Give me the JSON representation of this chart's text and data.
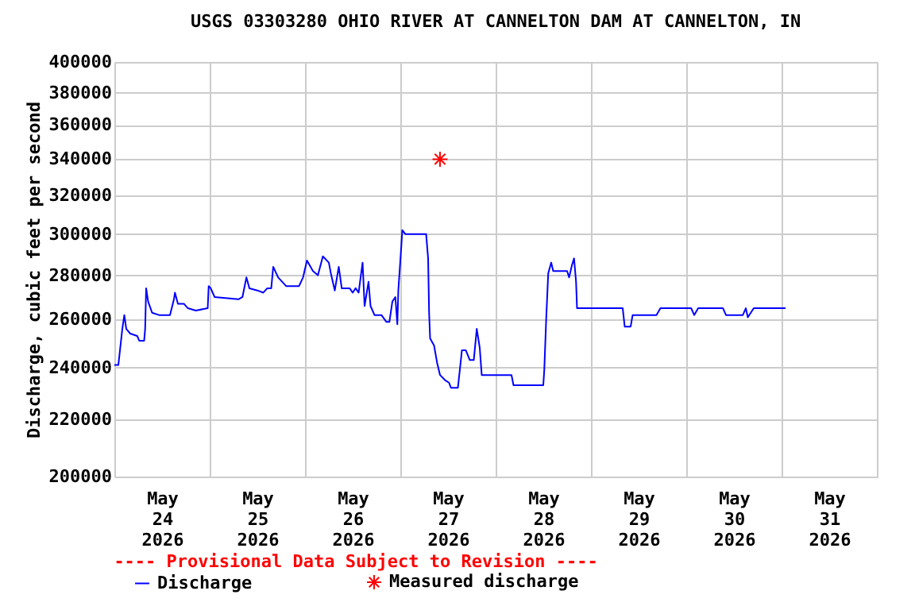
{
  "chart_data": {
    "type": "line",
    "title": "USGS 03303280 OHIO RIVER AT CANNELTON DAM AT CANNELTON, IN",
    "ylabel": "Discharge, cubic feet per second",
    "annotations": [
      "---- Provisional Data Subject to Revision ----"
    ],
    "log": true,
    "grid": true,
    "legend": "bottom",
    "line_style": "solid",
    "xlim": [
      "2026-05-24T00:00",
      "2026-06-01T00:00"
    ],
    "xticks": [
      {
        "value": "2026-05-24T00:00",
        "label": null
      },
      {
        "value": "2026-05-24T12:00",
        "label": "May\n24\n2026"
      },
      {
        "value": "2026-05-25T00:00",
        "label": null
      },
      {
        "value": "2026-05-25T12:00",
        "label": "May\n25\n2026"
      },
      {
        "value": "2026-05-26T00:00",
        "label": null
      },
      {
        "value": "2026-05-26T12:00",
        "label": "May\n26\n2026"
      },
      {
        "value": "2026-05-27T00:00",
        "label": null
      },
      {
        "value": "2026-05-27T12:00",
        "label": "May\n27\n2026"
      },
      {
        "value": "2026-05-28T00:00",
        "label": null
      },
      {
        "value": "2026-05-28T12:00",
        "label": "May\n28\n2026"
      },
      {
        "value": "2026-05-29T00:00",
        "label": null
      },
      {
        "value": "2026-05-29T12:00",
        "label": "May\n29\n2026"
      },
      {
        "value": "2026-05-30T00:00",
        "label": null
      },
      {
        "value": "2026-05-30T12:00",
        "label": "May\n30\n2026"
      },
      {
        "value": "2026-05-31T00:00",
        "label": null
      },
      {
        "value": "2026-05-31T12:00",
        "label": "May\n31\n2026"
      },
      {
        "value": "2026-06-01T00:00",
        "label": null
      }
    ],
    "ylim": [
      200000,
      400000
    ],
    "yticks": [
      200000,
      220000,
      240000,
      260000,
      280000,
      300000,
      320000,
      340000,
      360000,
      380000,
      400000
    ],
    "series": [
      {
        "name": "Discharge",
        "color": "#0000ff",
        "marker": "none",
        "x": [
          "2026-05-24T00:00",
          "2026-05-24T01:00",
          "2026-05-24T02:00",
          "2026-05-24T02:30",
          "2026-05-24T03:00",
          "2026-05-24T04:00",
          "2026-05-24T05:45",
          "2026-05-24T06:15",
          "2026-05-24T07:30",
          "2026-05-24T07:45",
          "2026-05-24T08:00",
          "2026-05-24T08:30",
          "2026-05-24T09:30",
          "2026-05-24T11:15",
          "2026-05-24T14:00",
          "2026-05-24T15:00",
          "2026-05-24T15:15",
          "2026-05-24T16:00",
          "2026-05-24T17:30",
          "2026-05-24T18:30",
          "2026-05-24T20:30",
          "2026-05-24T23:30",
          "2026-05-24T23:45",
          "2026-05-25T00:15",
          "2026-05-25T01:15",
          "2026-05-25T07:15",
          "2026-05-25T08:15",
          "2026-05-25T09:15",
          "2026-05-25T10:00",
          "2026-05-25T12:00",
          "2026-05-25T13:30",
          "2026-05-25T14:30",
          "2026-05-25T15:30",
          "2026-05-25T16:00",
          "2026-05-25T17:15",
          "2026-05-25T19:15",
          "2026-05-25T22:30",
          "2026-05-25T23:30",
          "2026-05-26T00:30",
          "2026-05-26T02:00",
          "2026-05-26T03:15",
          "2026-05-26T04:30",
          "2026-05-26T06:00",
          "2026-05-26T06:30",
          "2026-05-26T07:30",
          "2026-05-26T08:30",
          "2026-05-26T09:15",
          "2026-05-26T11:15",
          "2026-05-26T12:00",
          "2026-05-26T12:45",
          "2026-05-26T13:30",
          "2026-05-26T14:00",
          "2026-05-26T14:30",
          "2026-05-26T15:00",
          "2026-05-26T16:00",
          "2026-05-26T16:30",
          "2026-05-26T17:30",
          "2026-05-26T19:15",
          "2026-05-26T20:30",
          "2026-05-26T21:15",
          "2026-05-26T22:00",
          "2026-05-26T22:45",
          "2026-05-26T23:15",
          "2026-05-26T23:30",
          "2026-05-27T00:15",
          "2026-05-27T00:30",
          "2026-05-27T01:15",
          "2026-05-27T06:30",
          "2026-05-27T07:00",
          "2026-05-27T07:15",
          "2026-05-27T07:30",
          "2026-05-27T08:30",
          "2026-05-27T09:15",
          "2026-05-27T10:00",
          "2026-05-27T11:15",
          "2026-05-27T12:15",
          "2026-05-27T12:45",
          "2026-05-27T14:30",
          "2026-05-27T15:15",
          "2026-05-27T15:30",
          "2026-05-27T16:30",
          "2026-05-27T17:30",
          "2026-05-27T18:30",
          "2026-05-27T19:15",
          "2026-05-27T20:00",
          "2026-05-27T20:30",
          "2026-05-28T04:00",
          "2026-05-28T04:30",
          "2026-05-28T12:00",
          "2026-05-28T12:15",
          "2026-05-28T12:45",
          "2026-05-28T13:15",
          "2026-05-28T14:00",
          "2026-05-28T14:30",
          "2026-05-28T17:15",
          "2026-05-28T18:00",
          "2026-05-28T18:30",
          "2026-05-28T19:15",
          "2026-05-28T19:45",
          "2026-05-28T20:15",
          "2026-05-28T20:30",
          "2026-05-29T08:00",
          "2026-05-29T08:30",
          "2026-05-29T10:00",
          "2026-05-29T10:30",
          "2026-05-29T16:30",
          "2026-05-29T17:30",
          "2026-05-30T01:15",
          "2026-05-30T02:00",
          "2026-05-30T03:00",
          "2026-05-30T09:15",
          "2026-05-30T10:00",
          "2026-05-30T14:15",
          "2026-05-30T15:00",
          "2026-05-30T15:30",
          "2026-05-30T17:00",
          "2026-05-31T01:00"
        ],
        "values": [
          241000,
          241000,
          256000,
          262000,
          256000,
          254000,
          253000,
          251000,
          251000,
          256000,
          274000,
          268000,
          263000,
          262000,
          262000,
          269000,
          272000,
          267000,
          267000,
          265000,
          264000,
          265000,
          275000,
          274000,
          270000,
          269000,
          270000,
          279000,
          274000,
          273000,
          272000,
          274000,
          274000,
          284000,
          279000,
          275000,
          275000,
          279000,
          287000,
          282000,
          280000,
          289000,
          286000,
          281000,
          273000,
          284000,
          274000,
          274000,
          272000,
          274000,
          272000,
          279000,
          286000,
          266000,
          277000,
          266000,
          262000,
          262000,
          259000,
          259000,
          268000,
          270000,
          258000,
          273000,
          294000,
          302000,
          300000,
          300000,
          288000,
          263000,
          252000,
          249000,
          242000,
          237000,
          235000,
          234000,
          232000,
          232000,
          243000,
          247000,
          247000,
          243000,
          243000,
          256000,
          248000,
          237000,
          237000,
          233000,
          233000,
          239000,
          261000,
          281000,
          286000,
          282000,
          282000,
          282000,
          279000,
          285000,
          288000,
          277000,
          265000,
          265000,
          257000,
          257000,
          262000,
          262000,
          265000,
          265000,
          262000,
          265000,
          265000,
          262000,
          262000,
          265000,
          261000,
          265000,
          265000
        ]
      },
      {
        "name": "Measured discharge",
        "color": "#ff0000",
        "type": "scatter",
        "marker": "cross",
        "x": [
          "2026-05-27T10:00"
        ],
        "values": [
          340000
        ]
      }
    ]
  }
}
